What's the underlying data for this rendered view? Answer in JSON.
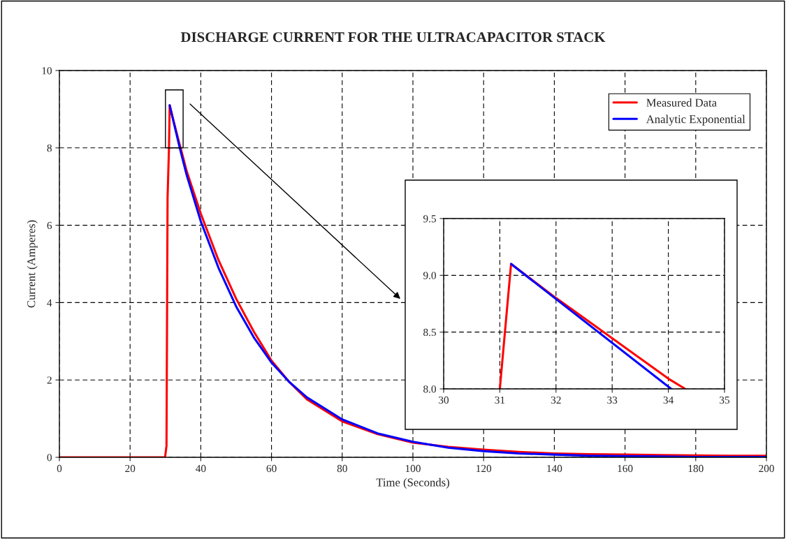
{
  "chart_data": [
    {
      "type": "line",
      "title": "DISCHARGE CURRENT FOR THE ULTRACAPACITOR STACK",
      "xlabel": "Time (Seconds)",
      "ylabel": "Current (Amperes)",
      "xlim": [
        0,
        200
      ],
      "xticks": [
        0,
        20,
        40,
        60,
        80,
        100,
        120,
        140,
        160,
        180,
        200
      ],
      "ylim": [
        0,
        10
      ],
      "yticks": [
        0,
        2,
        4,
        6,
        8,
        10
      ],
      "grid": true,
      "legend": "top right",
      "line_style": "solid",
      "marker": "none",
      "series": [
        {
          "name": "Measured Data",
          "color": "#ff0000",
          "x": [
            0,
            10,
            20,
            29.9,
            30.3,
            30.6,
            31.0,
            31.2,
            32,
            32.4,
            34,
            34.3,
            36,
            40,
            45,
            50,
            55,
            60,
            65,
            70,
            80,
            90,
            100,
            110,
            120,
            130,
            140,
            150,
            160,
            170,
            180,
            190,
            200
          ],
          "values": [
            0,
            0,
            0,
            0,
            0.3,
            6.7,
            8.0,
            9.1,
            8.8,
            8.66,
            8.09,
            8.0,
            7.4,
            6.3,
            5.1,
            4.1,
            3.25,
            2.5,
            1.95,
            1.5,
            0.93,
            0.6,
            0.38,
            0.27,
            0.2,
            0.14,
            0.1,
            0.08,
            0.07,
            0.06,
            0.05,
            0.04,
            0.04
          ]
        },
        {
          "name": "Analytic Exponential",
          "color": "#0000ff",
          "x": [
            31.2,
            34.05,
            36,
            40,
            45,
            50,
            55,
            60,
            65,
            70,
            80,
            90,
            100,
            110,
            120,
            130,
            140,
            150,
            160,
            170,
            180,
            190,
            200
          ],
          "values": [
            9.1,
            8.0,
            7.3,
            6.1,
            4.9,
            3.9,
            3.1,
            2.45,
            1.95,
            1.55,
            0.98,
            0.62,
            0.4,
            0.25,
            0.16,
            0.1,
            0.07,
            0.04,
            0.03,
            0.02,
            0.01,
            0.01,
            0.01
          ]
        }
      ]
    },
    {
      "type": "line",
      "xlim": [
        30,
        35
      ],
      "xticks": [
        30,
        31,
        32,
        33,
        34,
        35
      ],
      "ylim": [
        8.0,
        9.5
      ],
      "yticks": [
        {
          "value": 8.0,
          "label": "8.0"
        },
        {
          "value": 8.5,
          "label": "8.5"
        },
        {
          "value": 9.0,
          "label": "9.0"
        },
        {
          "value": 9.5,
          "label": "9.5"
        }
      ],
      "grid": true,
      "line_style": "solid",
      "marker": "none",
      "series": [
        {
          "color": "#ff0000",
          "x": [
            31.0,
            31.2,
            32.0,
            32.4,
            34.0,
            34.3
          ],
          "values": [
            8.0,
            9.1,
            8.8,
            8.66,
            8.09,
            8.0
          ]
        },
        {
          "color": "#0000ff",
          "x": [
            31.2,
            34.05
          ],
          "values": [
            9.1,
            8.0
          ]
        }
      ]
    }
  ]
}
